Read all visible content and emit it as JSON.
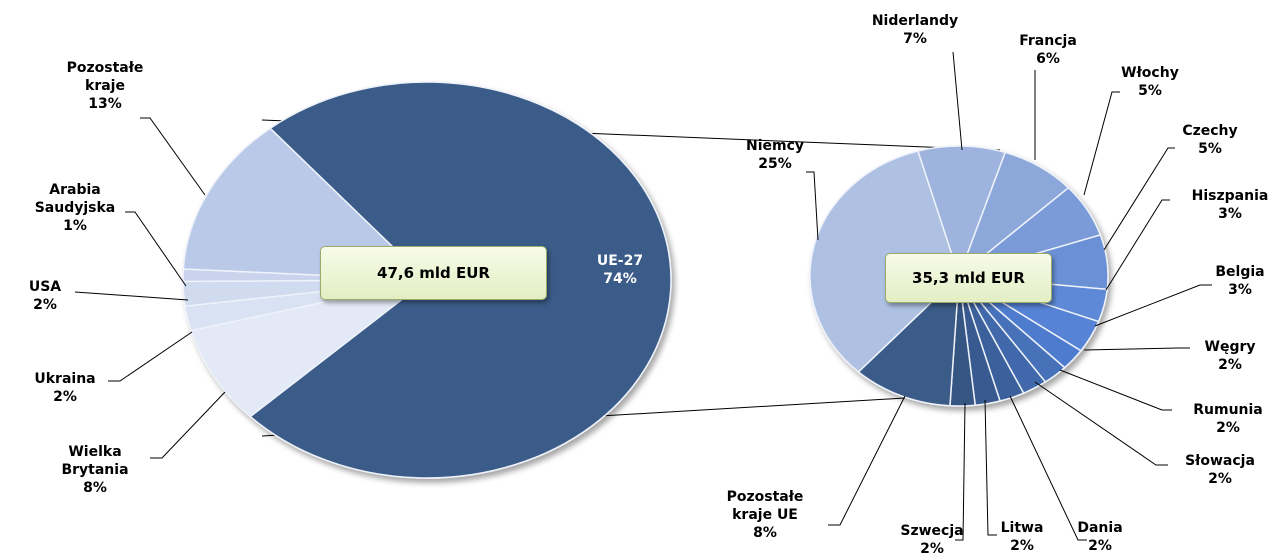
{
  "chart_data": [
    {
      "type": "pie",
      "total_label": "47,6 mld EUR",
      "categories": [
        "UE-27",
        "Wielka Brytania",
        "Ukraina",
        "USA",
        "Arabia Saudyjska",
        "Pozostałe kraje"
      ],
      "values": [
        74,
        8,
        2,
        2,
        1,
        13
      ],
      "value_labels": [
        "74%",
        "8%",
        "2%",
        "2%",
        "1%",
        "13%"
      ],
      "colors": [
        "#3b5c88",
        "#e3e9f7",
        "#d9e2f3",
        "#d1dbef",
        "#c9d4ec",
        "#b9c9e7"
      ]
    },
    {
      "type": "pie",
      "total_label": "35,3 mld EUR",
      "categories": [
        "Niemcy",
        "Niderlandy",
        "Francja",
        "Włochy",
        "Czechy",
        "Hiszpania",
        "Belgia",
        "Węgry",
        "Rumunia",
        "Słowacja",
        "Dania",
        "Litwa",
        "Szwecja",
        "Pozostałe kraje UE"
      ],
      "values": [
        25,
        7,
        6,
        5,
        5,
        3,
        3,
        2,
        2,
        2,
        2,
        2,
        2,
        8
      ],
      "value_labels": [
        "25%",
        "7%",
        "6%",
        "5%",
        "5%",
        "3%",
        "3%",
        "2%",
        "2%",
        "2%",
        "2%",
        "2%",
        "2%",
        "8%"
      ],
      "colors": [
        "#aec1e3",
        "#9eb3dd",
        "#8ca7da",
        "#7a9bd7",
        "#6a91d6",
        "#5d89d6",
        "#5783d5",
        "#4e7bcf",
        "#4671b9",
        "#3f68aa",
        "#3b609b",
        "#385a90",
        "#355583",
        "#3b5c88"
      ]
    }
  ]
}
